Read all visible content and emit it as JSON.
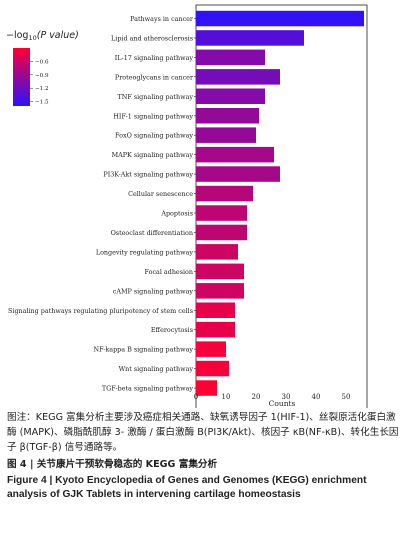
{
  "chart_data": {
    "type": "bar",
    "orientation": "horizontal",
    "categories": [
      "Pathways in cancer",
      "Lipid and atherosclerosis",
      "IL-17 signaling pathway",
      "Proteoglycans in cancer",
      "TNF signaling pathway",
      "HIF-1 signaling pathway",
      "FoxO signaling pathway",
      "MAPK signaling pathway",
      "PI3K-Akt signaling pathway",
      "Cellular senescence",
      "Apoptosis",
      "Osteoclast differentiation",
      "Longevity regulating pathway",
      "Focal adhesion",
      "cAMP signaling pathway",
      "Signaling pathways regulating pluripotency of stem cells",
      "Efferocytosis",
      "NF-kappa B signaling pathway",
      "Wnt signaling pathway",
      "TGF-beta signaling pathway"
    ],
    "values": [
      56,
      36,
      23,
      28,
      23,
      21,
      20,
      26,
      28,
      19,
      17,
      17,
      14,
      16,
      16,
      13,
      13,
      10,
      11,
      7
    ],
    "color_values": [
      -1.55,
      -1.35,
      -1.05,
      -1.15,
      -1.05,
      -0.95,
      -0.95,
      -0.85,
      -0.85,
      -0.75,
      -0.7,
      -0.7,
      -0.6,
      -0.6,
      -0.6,
      -0.45,
      -0.45,
      -0.35,
      -0.35,
      -0.3
    ],
    "xlabel": "Counts",
    "xlim": [
      0,
      57
    ],
    "xticks": [
      0,
      10,
      20,
      30,
      40,
      50
    ],
    "legend": {
      "title_prefix": "−log",
      "title_sub": "10",
      "title_suffix": "(P value)",
      "ticks": [
        "−0.6",
        "−0.9",
        "−1.2",
        "−1.5"
      ],
      "tick_values": [
        -0.6,
        -0.9,
        -1.2,
        -1.5
      ],
      "range": [
        -1.6,
        -0.3
      ],
      "colors": [
        "#ff0033",
        "#2a12ff"
      ],
      "placement": "top-left"
    }
  },
  "caption": {
    "zh": "图注：KEGG 富集分析主要涉及癌症相关通路、缺氧诱导因子 1(HIF-1)、丝裂原活化蛋白激酶 (MAPK)、磷脂酰肌醇 3- 激酶 / 蛋白激酶 B(PI3K/Akt)、核因子 κB(NF-κB)、转化生长因子 β(TGF-β) 信号通路等。",
    "fig_zh": "图 4  | 关节康片干预软骨稳态的 KEGG 富集分析",
    "fig_en": "Figure 4  |  Kyoto Encyclopedia of Genes and Genomes (KEGG) enrichment analysis of GJK Tablets in intervening cartilage homeostasis"
  }
}
